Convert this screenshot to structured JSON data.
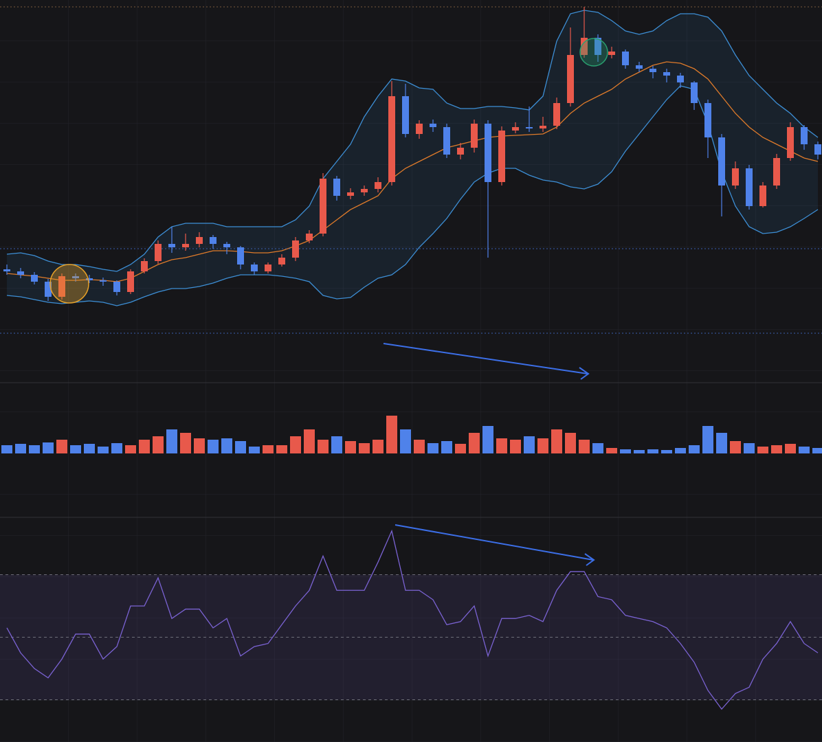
{
  "chart_data": [
    {
      "type": "candlestick",
      "ylim": [
        0,
        480
      ],
      "up_color": "#e8594b",
      "down_color": "#4f82ea",
      "price_line": 118,
      "open": [
        88,
        85,
        80,
        70,
        48,
        78,
        75,
        72,
        70,
        55,
        85,
        100,
        125,
        120,
        125,
        135,
        125,
        120,
        95,
        85,
        95,
        105,
        130,
        140,
        220,
        195,
        200,
        205,
        215,
        340,
        285,
        300,
        295,
        255,
        265,
        300,
        215,
        290,
        295,
        293,
        297,
        330,
        400,
        425,
        400,
        405,
        385,
        380,
        375,
        370,
        360,
        330,
        280,
        210,
        235,
        180,
        210,
        250,
        295,
        270
      ],
      "high": [
        95,
        90,
        84,
        74,
        82,
        82,
        80,
        76,
        72,
        88,
        104,
        130,
        150,
        140,
        142,
        138,
        128,
        122,
        98,
        98,
        110,
        135,
        145,
        228,
        224,
        206,
        210,
        222,
        362,
        358,
        305,
        306,
        300,
        272,
        306,
        305,
        296,
        302,
        325,
        310,
        338,
        440,
        470,
        430,
        412,
        408,
        390,
        384,
        380,
        374,
        362,
        335,
        285,
        245,
        240,
        215,
        256,
        302,
        298,
        274
      ],
      "low": [
        80,
        75,
        66,
        42,
        44,
        70,
        68,
        64,
        50,
        52,
        82,
        96,
        112,
        115,
        120,
        118,
        110,
        88,
        80,
        82,
        92,
        100,
        126,
        136,
        188,
        190,
        195,
        200,
        210,
        280,
        278,
        288,
        250,
        248,
        258,
        105,
        210,
        286,
        288,
        288,
        292,
        325,
        396,
        390,
        395,
        380,
        375,
        366,
        360,
        352,
        320,
        250,
        165,
        205,
        175,
        178,
        205,
        246,
        262,
        248
      ],
      "close": [
        85,
        80,
        70,
        48,
        78,
        75,
        72,
        70,
        55,
        85,
        100,
        125,
        120,
        125,
        135,
        125,
        120,
        95,
        85,
        95,
        105,
        130,
        140,
        220,
        195,
        200,
        205,
        215,
        340,
        285,
        300,
        295,
        255,
        265,
        300,
        215,
        290,
        295,
        293,
        297,
        330,
        400,
        425,
        400,
        405,
        385,
        380,
        375,
        370,
        360,
        330,
        280,
        210,
        235,
        180,
        210,
        250,
        295,
        270,
        255
      ],
      "bands": {
        "color": "#3d8fd6",
        "middle_color": "#e07b2a",
        "upper": [
          110,
          112,
          108,
          100,
          95,
          95,
          92,
          88,
          85,
          95,
          110,
          135,
          150,
          155,
          155,
          155,
          150,
          150,
          150,
          150,
          150,
          160,
          180,
          220,
          245,
          270,
          310,
          340,
          365,
          362,
          352,
          350,
          330,
          322,
          322,
          325,
          325,
          323,
          320,
          340,
          420,
          460,
          465,
          462,
          450,
          435,
          430,
          435,
          450,
          460,
          460,
          455,
          435,
          400,
          370,
          350,
          330,
          315,
          295,
          280
        ],
        "middle": [
          82,
          80,
          78,
          75,
          72,
          72,
          73,
          72,
          70,
          75,
          85,
          95,
          102,
          105,
          110,
          115,
          115,
          114,
          112,
          112,
          115,
          122,
          130,
          145,
          160,
          175,
          185,
          195,
          220,
          235,
          245,
          255,
          265,
          270,
          275,
          280,
          282,
          283,
          284,
          285,
          295,
          315,
          330,
          340,
          350,
          365,
          375,
          385,
          390,
          388,
          380,
          365,
          340,
          315,
          295,
          280,
          270,
          260,
          250,
          245
        ],
        "lower": [
          50,
          48,
          44,
          40,
          38,
          40,
          42,
          40,
          35,
          40,
          48,
          55,
          60,
          60,
          63,
          68,
          75,
          80,
          80,
          80,
          78,
          75,
          70,
          50,
          45,
          47,
          62,
          75,
          80,
          95,
          120,
          140,
          162,
          190,
          215,
          228,
          235,
          235,
          225,
          218,
          215,
          208,
          205,
          212,
          230,
          260,
          285,
          310,
          335,
          355,
          350,
          300,
          230,
          180,
          150,
          140,
          142,
          150,
          162,
          175
        ]
      }
    },
    {
      "type": "bar",
      "ylim": [
        0,
        80
      ],
      "values": [
        12,
        14,
        12,
        16,
        20,
        12,
        14,
        10,
        15,
        12,
        20,
        25,
        35,
        30,
        22,
        20,
        22,
        18,
        10,
        12,
        12,
        25,
        35,
        20,
        25,
        18,
        15,
        20,
        55,
        35,
        20,
        15,
        18,
        14,
        30,
        40,
        22,
        20,
        25,
        22,
        35,
        30,
        20,
        15,
        8,
        6,
        5,
        6,
        5,
        8,
        12,
        40,
        30,
        18,
        15,
        10,
        12,
        14,
        10,
        8
      ]
    },
    {
      "type": "line",
      "ylim": [
        0,
        100
      ],
      "color": "#7b63d4",
      "levels": [
        70,
        50,
        30
      ],
      "values": [
        53,
        45,
        40,
        37,
        43,
        51,
        51,
        43,
        47,
        60,
        60,
        69,
        56,
        59,
        59,
        53,
        56,
        44,
        47,
        48,
        54,
        60,
        65,
        76,
        65,
        65,
        65,
        74,
        84,
        65,
        65,
        62,
        54,
        55,
        60,
        44,
        56,
        56,
        57,
        55,
        65,
        71,
        71,
        63,
        62,
        57,
        56,
        55,
        53,
        48,
        42,
        33,
        27,
        32,
        34,
        43,
        48,
        55,
        48,
        45
      ]
    }
  ]
}
